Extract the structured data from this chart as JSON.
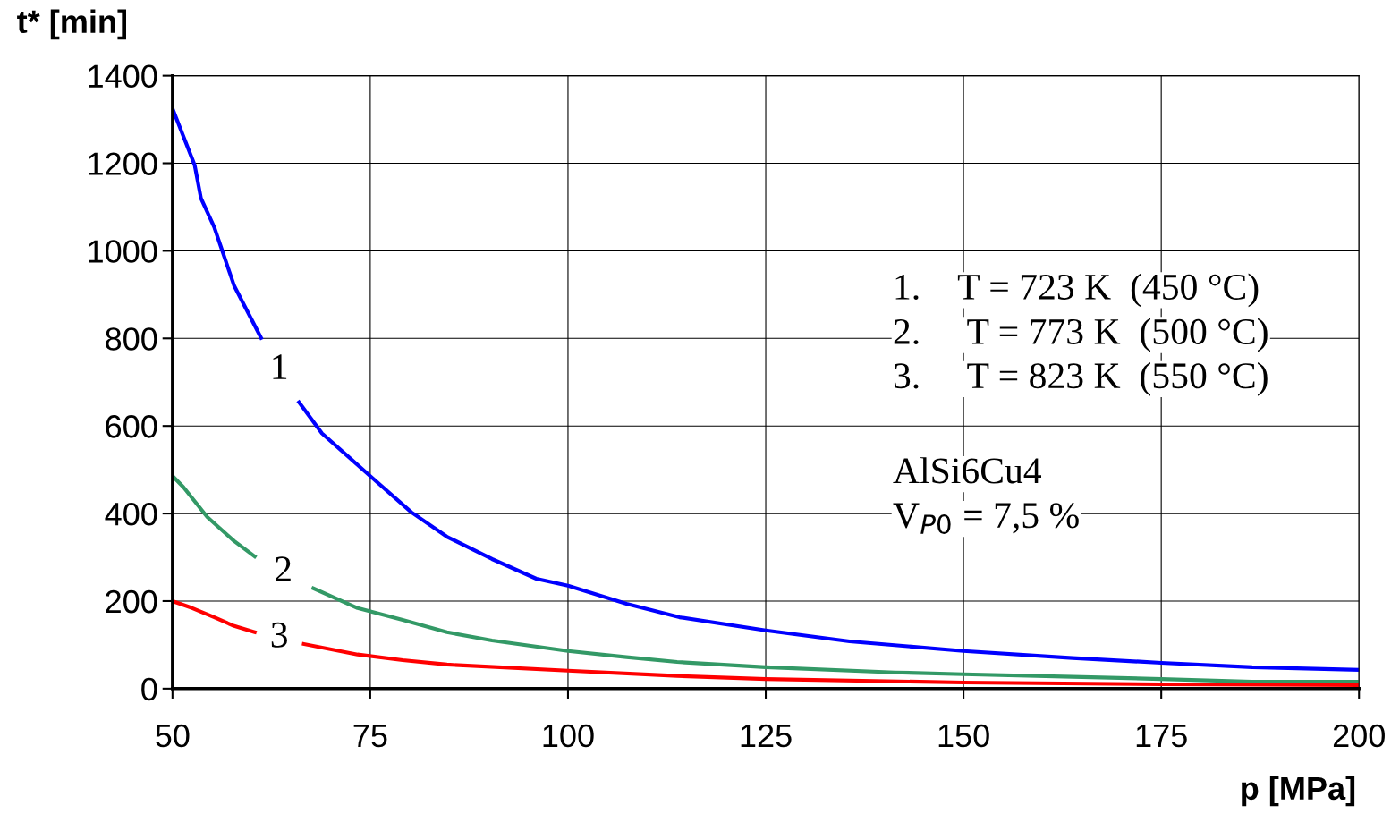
{
  "chart_data": {
    "type": "line",
    "xlabel": "p [MPa]",
    "ylabel": "t* [min]",
    "xlim": [
      50,
      200
    ],
    "xticks": [
      50,
      75,
      100,
      125,
      150,
      175,
      200
    ],
    "ylim": [
      0,
      1400
    ],
    "yticks": [
      0,
      200,
      400,
      600,
      800,
      1000,
      1200,
      1400
    ],
    "grid": true,
    "marker": "none",
    "line_style": "solid",
    "series": [
      {
        "name": "1",
        "color": "#0000ff",
        "x": [
          50,
          52.8,
          53.6,
          55.3,
          57.8,
          61.2,
          63.5,
          66,
          68.9,
          75.1,
          80.2,
          84.7,
          90.4,
          96,
          100,
          107.4,
          114.1,
          125,
          135.6,
          150,
          163.8,
          175,
          186.5,
          200
        ],
        "values": [
          1325,
          1196,
          1120,
          1053,
          920,
          801,
          null,
          654,
          583,
          484,
          403,
          347,
          296,
          251,
          235,
          194,
          163,
          133,
          108,
          86,
          70,
          59,
          49,
          43
        ]
      },
      {
        "name": "2",
        "color": "#339966",
        "x": [
          50,
          51.4,
          54.4,
          57.8,
          60.4,
          64,
          67.8,
          73.4,
          79.1,
          84.7,
          90.4,
          100,
          107.4,
          113.8,
          125,
          141.3,
          150,
          163.8,
          175,
          186.5,
          200
        ],
        "values": [
          486,
          460,
          392,
          337,
          302,
          null,
          229,
          184,
          157,
          129,
          110,
          86,
          72,
          61,
          49,
          37,
          33,
          27,
          22,
          16,
          16
        ]
      },
      {
        "name": "3",
        "color": "#ff0000",
        "x": [
          50,
          52.5,
          55.3,
          57.8,
          60.4,
          63.5,
          66.6,
          73.4,
          79.1,
          84.7,
          100,
          113.8,
          125,
          150,
          175,
          200
        ],
        "values": [
          200,
          184,
          163,
          143,
          129,
          null,
          102,
          78,
          65,
          55,
          41,
          29,
          22,
          14,
          10,
          8
        ]
      }
    ],
    "annotations": [
      "1.    T = 723 K  (450 °C)",
      "2.     T = 773 K  (500 °C)",
      "3.     T = 823 K  (550 °C)",
      "AlSi6Cu4",
      "V$_{P0}$ = 7,5 %"
    ]
  }
}
